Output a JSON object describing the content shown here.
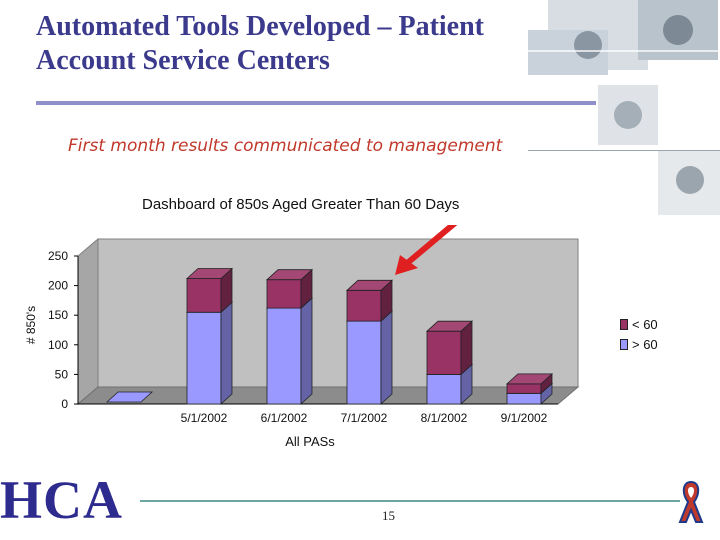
{
  "slide": {
    "title": "Automated Tools Developed – Patient Account Service Centers",
    "subtitle": "First month results communicated to management",
    "page_number": "15",
    "logo": "HCA",
    "accent_color": "#3b3a8c",
    "subtitle_color": "#c0392b",
    "arrow_color": "#e02020"
  },
  "chart_data": {
    "type": "bar",
    "stacked": true,
    "title": "Dashboard of 850s Aged Greater Than 60 Days",
    "xlabel": "All PASs",
    "ylabel": "# 850's",
    "ylim": [
      0,
      250
    ],
    "yticks": [
      0,
      50,
      100,
      150,
      200,
      250
    ],
    "categories": [
      "",
      "5/1/2002",
      "6/1/2002",
      "7/1/2002",
      "8/1/2002",
      "9/1/2002"
    ],
    "grid": false,
    "legend_position": "right",
    "series": [
      {
        "name": "> 60",
        "color": "#9999ff",
        "values": [
          0,
          155,
          162,
          140,
          50,
          18
        ]
      },
      {
        "name": "< 60",
        "color": "#993366",
        "values": [
          0,
          57,
          48,
          52,
          73,
          16
        ]
      }
    ]
  }
}
